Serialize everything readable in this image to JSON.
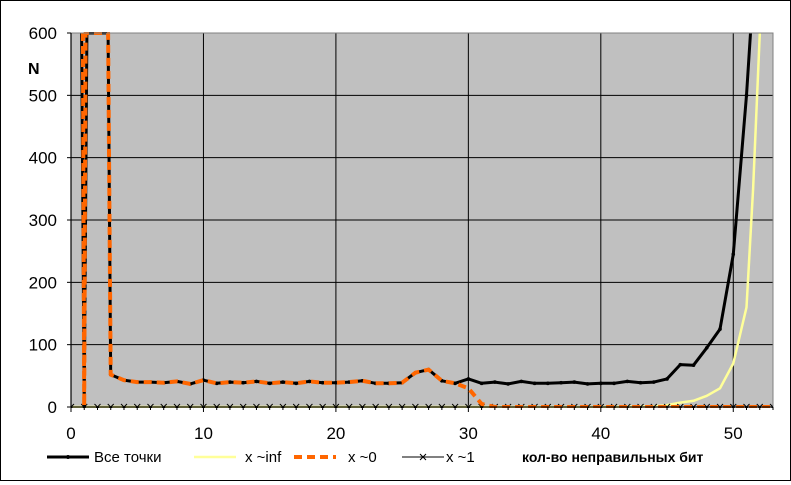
{
  "chart_data": {
    "type": "line",
    "title": "",
    "xlabel": "кол-во неправильных бит",
    "ylabel": "N",
    "xlim": [
      0,
      53
    ],
    "ylim": [
      0,
      600
    ],
    "xticks": [
      0,
      10,
      20,
      30,
      40,
      50
    ],
    "yticks": [
      0,
      100,
      200,
      300,
      400,
      500,
      600
    ],
    "grid": true,
    "plot_background": "#c0c0c0",
    "legend_position": "bottom",
    "series": [
      {
        "name": "Все точки",
        "color": "#000000",
        "style": "solid-marker",
        "x": [
          0.8,
          1,
          1.2,
          2.8,
          3,
          4,
          5,
          6,
          7,
          8,
          9,
          10,
          11,
          12,
          13,
          14,
          15,
          16,
          17,
          18,
          19,
          20,
          21,
          22,
          23,
          24,
          25,
          26,
          27,
          28,
          29,
          30,
          31,
          32,
          33,
          34,
          35,
          36,
          37,
          38,
          39,
          40,
          41,
          42,
          43,
          44,
          45,
          46,
          47,
          48,
          49,
          50,
          51,
          51.3
        ],
        "y": [
          600,
          2,
          600,
          600,
          52,
          43,
          40,
          40,
          39,
          41,
          37,
          43,
          38,
          40,
          39,
          41,
          38,
          40,
          38,
          41,
          39,
          39,
          40,
          42,
          38,
          38,
          39,
          55,
          60,
          42,
          38,
          45,
          38,
          40,
          37,
          41,
          38,
          38,
          39,
          40,
          37,
          38,
          38,
          41,
          39,
          40,
          45,
          68,
          67,
          95,
          125,
          245,
          500,
          600
        ]
      },
      {
        "name": "x ~inf",
        "color": "#ffff99",
        "style": "solid",
        "x": [
          0,
          10,
          20,
          30,
          40,
          44,
          45,
          46,
          47,
          48,
          49,
          50,
          51,
          51.5,
          52
        ],
        "y": [
          0,
          0,
          0,
          0,
          0,
          1,
          3,
          7,
          10,
          18,
          30,
          70,
          160,
          350,
          600
        ],
        "style_note": "light yellow"
      },
      {
        "name": "x ~0",
        "color": "#ff6600",
        "style": "dashed",
        "x": [
          0.9,
          1,
          1.1,
          2.8,
          3,
          4,
          5,
          6,
          7,
          8,
          9,
          10,
          11,
          12,
          13,
          14,
          15,
          16,
          17,
          18,
          19,
          20,
          21,
          22,
          23,
          24,
          25,
          26,
          27,
          28,
          29,
          30,
          31,
          32,
          33,
          34,
          35,
          36,
          37,
          38,
          39,
          40,
          45,
          53
        ],
        "y": [
          600,
          2,
          600,
          600,
          52,
          43,
          40,
          40,
          39,
          41,
          37,
          43,
          38,
          40,
          39,
          41,
          38,
          40,
          38,
          41,
          39,
          39,
          40,
          42,
          38,
          38,
          39,
          55,
          60,
          42,
          38,
          30,
          5,
          0,
          0,
          0,
          0,
          0,
          0,
          0,
          0,
          0,
          0,
          0
        ]
      },
      {
        "name": "x ~1",
        "color": "#000000",
        "style": "x-marker",
        "x": [
          0,
          1,
          2,
          3,
          4,
          5,
          6,
          7,
          8,
          9,
          10,
          11,
          12,
          13,
          14,
          15,
          16,
          17,
          18,
          19,
          20,
          21,
          22,
          23,
          24,
          25,
          26,
          27,
          28,
          29,
          30,
          31,
          32,
          33,
          34,
          35,
          36,
          37,
          38,
          39,
          40,
          41,
          42,
          43,
          44,
          45,
          46,
          47,
          48,
          49,
          50,
          51,
          52,
          53
        ],
        "y": [
          0,
          0,
          0,
          0,
          0,
          0,
          0,
          0,
          0,
          0,
          0,
          0,
          0,
          0,
          0,
          0,
          0,
          0,
          0,
          0,
          0,
          0,
          0,
          0,
          0,
          0,
          0,
          0,
          0,
          0,
          0,
          0,
          0,
          0,
          0,
          0,
          0,
          0,
          0,
          0,
          0,
          0,
          0,
          0,
          0,
          0,
          0,
          0,
          0,
          0,
          0,
          0,
          0,
          0
        ]
      }
    ]
  }
}
